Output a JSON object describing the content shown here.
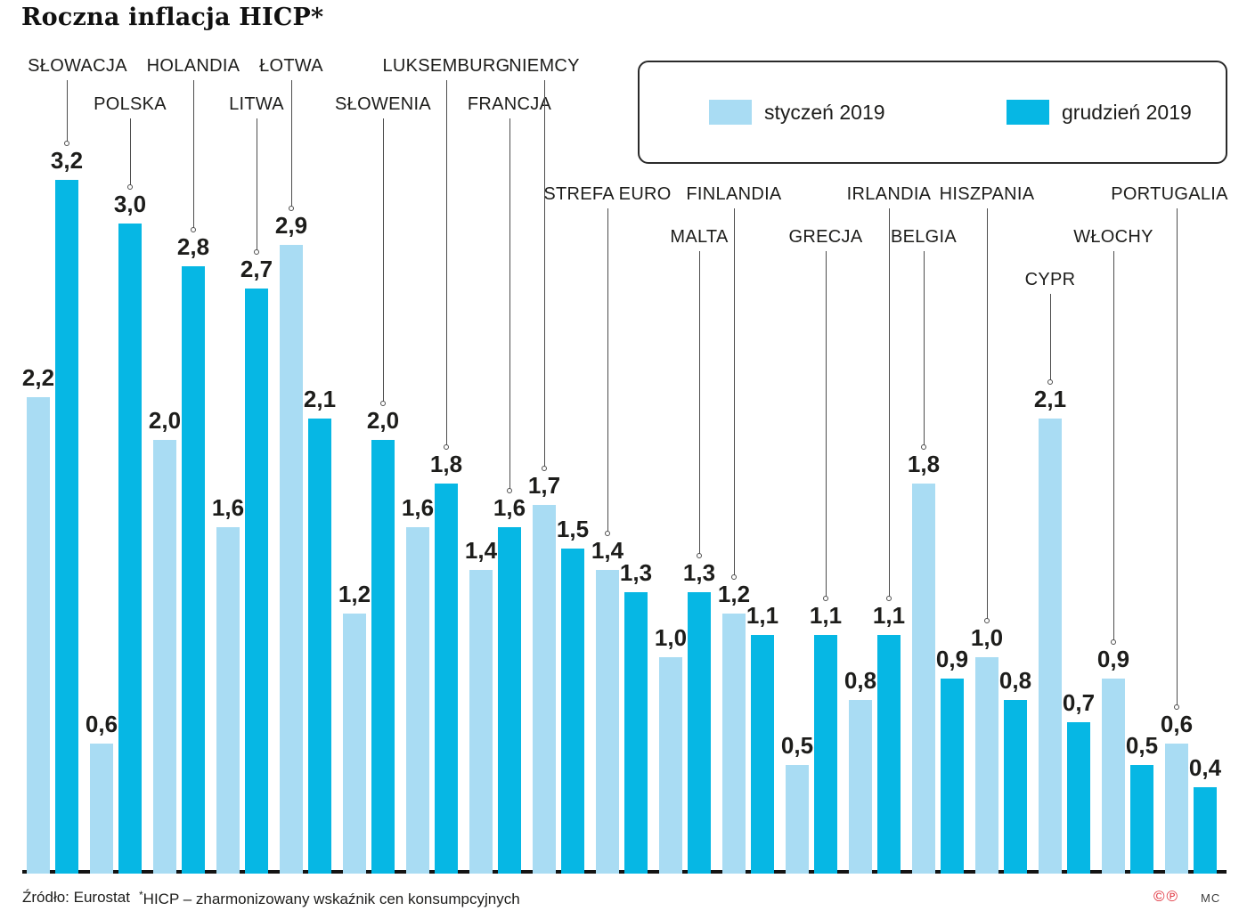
{
  "title": "Roczna inflacja HICP*",
  "legend": {
    "items": [
      {
        "label": "styczeń 2019",
        "color": "#A9DCF3"
      },
      {
        "label": "grudzień 2019",
        "color": "#06B7E4"
      }
    ]
  },
  "footer": {
    "source": "Źródło: Eurostat",
    "footnote_mark": "*",
    "footnote_text": "HICP – zharmonizowany wskaźnik cen konsumpcyjnych",
    "rights_marks": "©℗",
    "initials": "MC"
  },
  "chart_data": {
    "type": "bar",
    "title": "Roczna inflacja HICP*",
    "categories": [
      "SŁOWACJA",
      "POLSKA",
      "HOLANDIA",
      "LITWA",
      "ŁOTWA",
      "SŁOWENIA",
      "LUKSEMBURG",
      "FRANCJA",
      "NIEMCY",
      "STREFA EURO",
      "MALTA",
      "FINLANDIA",
      "GRECJA",
      "IRLANDIA",
      "BELGIA",
      "HISZPANIA",
      "CYPR",
      "WŁOCHY",
      "PORTUGALIA"
    ],
    "series": [
      {
        "name": "styczeń 2019",
        "values": [
          2.2,
          0.6,
          2.0,
          1.6,
          2.9,
          1.2,
          1.6,
          1.4,
          1.7,
          1.4,
          1.0,
          1.2,
          0.5,
          0.8,
          1.8,
          1.0,
          2.1,
          0.9,
          0.6
        ]
      },
      {
        "name": "grudzień 2019",
        "values": [
          3.2,
          3.0,
          2.8,
          2.7,
          2.1,
          2.0,
          1.8,
          1.6,
          1.5,
          1.3,
          1.3,
          1.1,
          1.1,
          1.1,
          0.9,
          0.8,
          0.7,
          0.5,
          0.4
        ]
      }
    ],
    "ylim": [
      0,
      3.2
    ],
    "value_label_decimal_separator": ",",
    "grid": false,
    "legend_position": "top-right",
    "label_tiers": [
      0,
      1,
      0,
      1,
      0,
      1,
      0,
      1,
      0,
      2,
      3,
      2,
      3,
      2,
      3,
      2,
      4,
      3,
      2
    ]
  }
}
